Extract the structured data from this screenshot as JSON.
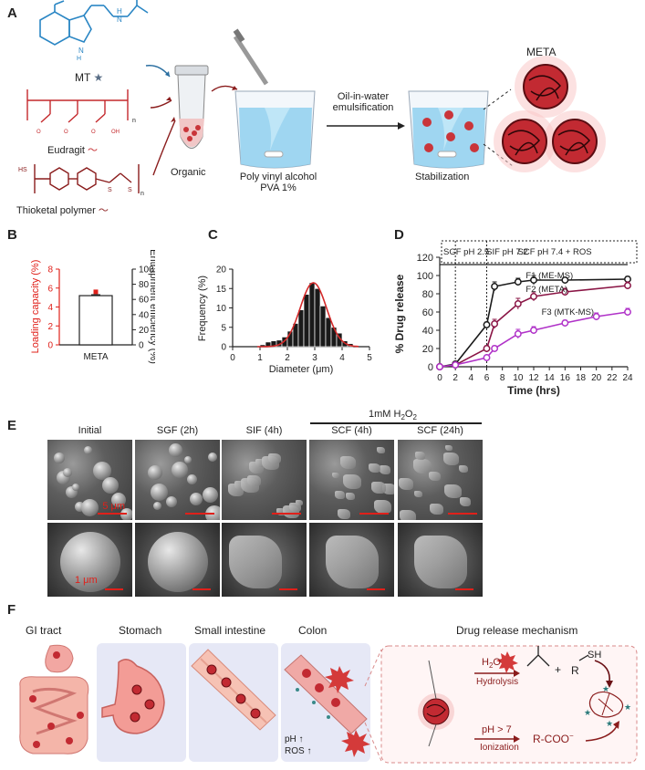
{
  "panels": {
    "a": "A",
    "b": "B",
    "c": "C",
    "d": "D",
    "e": "E",
    "f": "F"
  },
  "panel_a": {
    "mt_label": "MT",
    "eudragit_label": "Eudragit",
    "thioketal_label": "Thioketal polymer",
    "organic_label": "Organic",
    "pva_label_1": "Poly vinyl alcohol",
    "pva_label_2": "PVA 1%",
    "emulsification_1": "Oil-in-water",
    "emulsification_2": "emulsification",
    "stabilization_label": "Stabilization",
    "meta_label": "META",
    "subscript_n": "n",
    "hs_label": "HS",
    "s_label": "S"
  },
  "panel_e": {
    "header": "1mM H",
    "header_sub": "2",
    "header_tail": "O",
    "header_sub2": "2",
    "columns": [
      "Initial",
      "SGF (2h)",
      "SIF (4h)",
      "SCF (4h)",
      "SCF (24h)"
    ],
    "scale_top": "5 μm",
    "scale_bottom": "1 μm"
  },
  "panel_f": {
    "gi_tract": "GI tract",
    "stomach": "Stomach",
    "small_intestine": "Small intestine",
    "colon": "Colon",
    "mechanism": "Drug release mechanism",
    "ph_up": "pH ↑",
    "ros_up": "ROS ↑",
    "h2o": "H",
    "h2o_sub": "2",
    "h2o_tail": "O",
    "hydrolysis": "Hydrolysis",
    "ph7": "pH > 7",
    "ionization": "Ionization",
    "rcoo": "R-COO",
    "rcoo_sup": "−",
    "plus": "+",
    "r": "R",
    "sh": "SH"
  },
  "chart_data": [
    {
      "type": "bar",
      "panel": "B",
      "categories": [
        "META"
      ],
      "values": [
        5.2
      ],
      "error": [
        0.1
      ],
      "ylabel": "Loading capacity (%)",
      "ylim": [
        0,
        8
      ],
      "yticks": [
        0,
        2,
        4,
        6,
        8
      ],
      "y2label": "Entrapment efficiency (%)",
      "y2lim": [
        0,
        100
      ],
      "y2ticks": [
        0,
        20,
        40,
        60,
        80,
        100
      ],
      "y2_points": [
        70
      ],
      "colors": {
        "primary": "#e0201a",
        "bar_edge": "#222222"
      }
    },
    {
      "type": "bar",
      "panel": "C",
      "subtype": "histogram",
      "xlabel": "Diameter (μm)",
      "ylabel": "Frequency (%)",
      "xlim": [
        0,
        5
      ],
      "ylim": [
        0,
        20
      ],
      "xticks": [
        0,
        1,
        2,
        3,
        4,
        5
      ],
      "yticks": [
        0,
        5,
        10,
        15,
        20
      ],
      "bin_width": 0.2,
      "bin_centers": [
        1.1,
        1.3,
        1.5,
        1.7,
        1.9,
        2.1,
        2.3,
        2.5,
        2.7,
        2.9,
        3.1,
        3.3,
        3.5,
        3.7,
        3.9,
        4.1,
        4.3
      ],
      "values": [
        0.5,
        1.2,
        1.5,
        1.7,
        2.5,
        4,
        6,
        9.5,
        13.5,
        16.5,
        15,
        10.5,
        7.5,
        5,
        3.5,
        1.5,
        0.8
      ],
      "fit": {
        "mean": 2.95,
        "sd": 0.48,
        "peak": 16.5
      },
      "colors": {
        "bar": "#1a1a1a",
        "fit": "#d42a2a"
      }
    },
    {
      "type": "line",
      "panel": "D",
      "xlabel": "Time (hrs)",
      "ylabel": "% Drug release",
      "xlim": [
        0,
        24
      ],
      "ylim": [
        0,
        120
      ],
      "xticks": [
        0,
        2,
        4,
        6,
        8,
        10,
        12,
        14,
        16,
        18,
        20,
        22,
        24
      ],
      "yticks": [
        0,
        20,
        40,
        60,
        80,
        100,
        120
      ],
      "phases": [
        "SGF pH 2.5",
        "SIF pH 7.2",
        "SCF pH 7.4 + ROS"
      ],
      "phase_bounds": [
        2,
        6
      ],
      "series": [
        {
          "name": "F1 (ME-MS)",
          "color": "#1a1a1a",
          "x": [
            0,
            2,
            6,
            7,
            10,
            12,
            16,
            24
          ],
          "y": [
            0,
            3,
            46,
            88,
            93,
            95,
            95,
            96
          ],
          "err": [
            0,
            1,
            3,
            5,
            4,
            5,
            3,
            3
          ]
        },
        {
          "name": "F2 (META)",
          "color": "#8a1545",
          "x": [
            0,
            2,
            6,
            7,
            10,
            12,
            16,
            24
          ],
          "y": [
            0,
            2,
            20,
            47,
            69,
            77,
            82,
            89
          ],
          "err": [
            0,
            1,
            3,
            5,
            6,
            5,
            4,
            4
          ]
        },
        {
          "name": "F3 (MTK-MS)",
          "color": "#b032c8",
          "x": [
            0,
            2,
            6,
            7,
            10,
            12,
            16,
            20,
            24
          ],
          "y": [
            0,
            2,
            10,
            20,
            36,
            40,
            48,
            55,
            60
          ],
          "err": [
            0,
            1,
            2,
            3,
            5,
            4,
            3,
            4,
            4
          ]
        }
      ]
    }
  ]
}
